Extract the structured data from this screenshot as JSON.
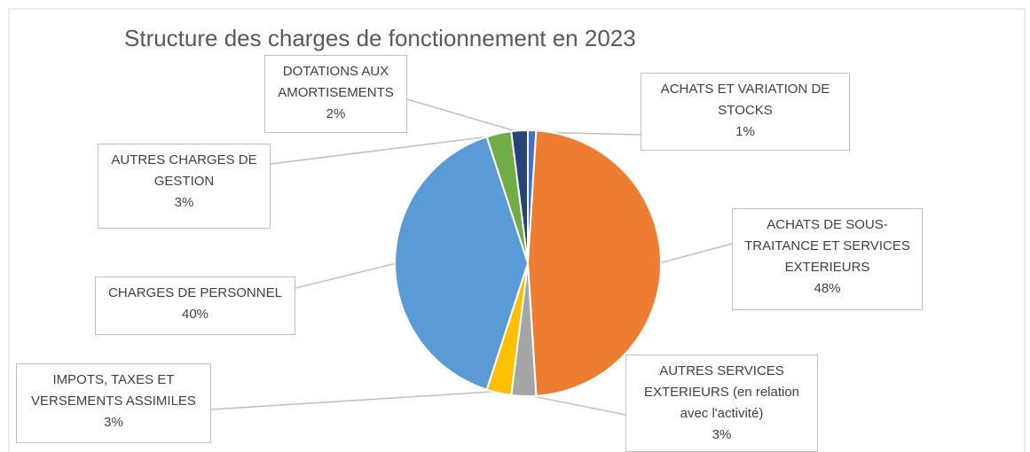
{
  "chart_data": {
    "type": "pie",
    "title": "Structure des charges de fonctionnement en 2023",
    "categories": [
      "ACHATS ET VARIATION DE STOCKS",
      "ACHATS DE SOUS-TRAITANCE ET SERVICES EXTERIEURS",
      "AUTRES SERVICES EXTERIEURS (en relation avec l'activité)",
      "IMPOTS, TAXES ET VERSEMENTS ASSIMILES",
      "CHARGES DE PERSONNEL",
      "AUTRES CHARGES DE GESTION",
      "DOTATIONS AUX AMORTISEMENTS"
    ],
    "values": [
      1,
      48,
      3,
      3,
      40,
      3,
      2
    ],
    "value_labels": [
      "1%",
      "48%",
      "3%",
      "3%",
      "40%",
      "3%",
      "2%"
    ],
    "colors": [
      "#4472c4",
      "#ed7d31",
      "#a5a5a5",
      "#ffc000",
      "#5b9bd5",
      "#70ad47",
      "#264478"
    ]
  }
}
